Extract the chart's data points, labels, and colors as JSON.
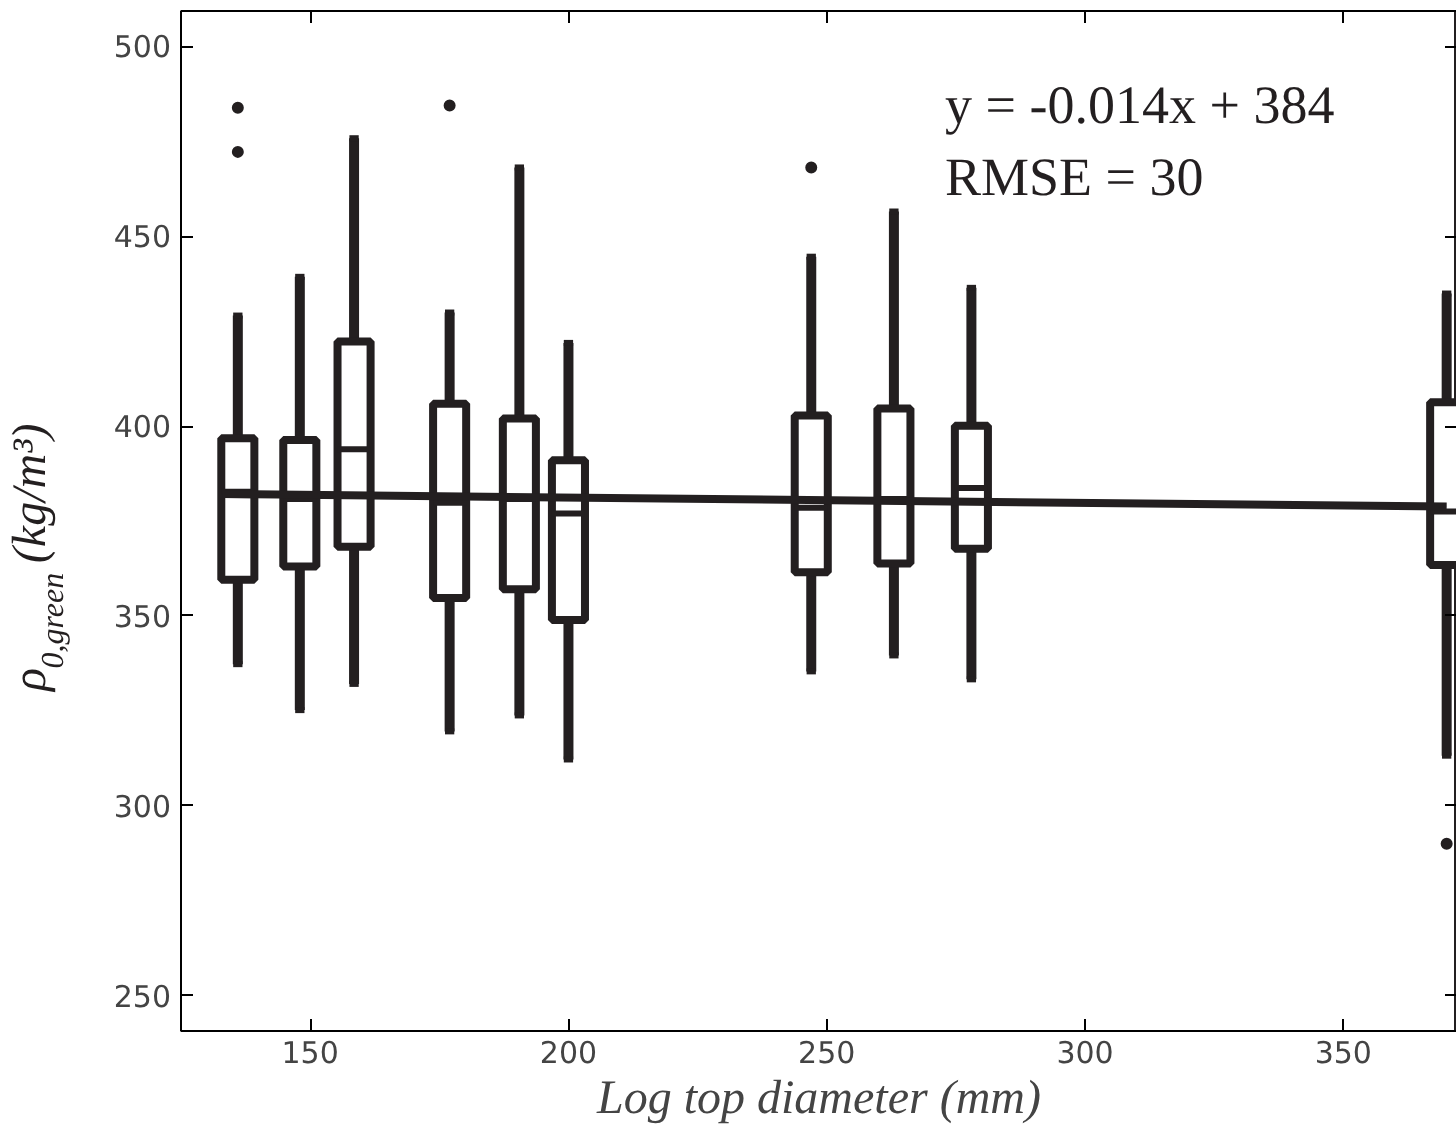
{
  "chart_data": {
    "type": "box",
    "xlabel": "Log top diameter (mm)",
    "ylabel": "ρ$_{0,green}$ (kg/m³)",
    "annotations": [
      "y = -0.014x + 384",
      "RMSE = 30"
    ],
    "xlim": [
      125,
      372
    ],
    "ylim": [
      240.7,
      509.3
    ],
    "xticks": [
      150,
      200,
      250,
      300,
      350
    ],
    "yticks": [
      250,
      300,
      350,
      400,
      450,
      500
    ],
    "grid": false,
    "series": [
      {
        "color": "#231f20",
        "x": [
          136,
          148,
          158.5,
          177,
          190.5,
          200,
          247,
          263,
          278,
          370
        ],
        "boxes": [
          {
            "low": 337.3,
            "q1": 359.5,
            "median": 382.7,
            "q3": 396.8,
            "high": 429.1,
            "outliers": [
              483.8,
              472.2
            ]
          },
          {
            "low": 325.2,
            "q1": 363.0,
            "median": 380.8,
            "q3": 396.3,
            "high": 439.3
          },
          {
            "low": 332.1,
            "q1": 368.2,
            "median": 393.9,
            "q3": 422.3,
            "high": 475.8
          },
          {
            "low": 319.6,
            "q1": 354.7,
            "median": 379.8,
            "q3": 405.9,
            "high": 429.9,
            "outliers": [
              484.4
            ]
          },
          {
            "low": 323.8,
            "q1": 357.0,
            "median": 380.8,
            "q3": 402.0,
            "high": 468.1
          },
          {
            "low": 312.2,
            "q1": 348.9,
            "median": 377.0,
            "q3": 391.0,
            "high": 421.9
          },
          {
            "low": 335.4,
            "q1": 361.5,
            "median": 378.5,
            "q3": 402.8,
            "high": 444.6,
            "outliers": [
              468.1
            ]
          },
          {
            "low": 339.6,
            "q1": 363.8,
            "median": 380.8,
            "q3": 404.6,
            "high": 456.5
          },
          {
            "low": 333.3,
            "q1": 367.7,
            "median": 383.7,
            "q3": 400.1,
            "high": 436.4
          },
          {
            "low": 313.2,
            "q1": 363.4,
            "median": 377.5,
            "q3": 406.3,
            "high": 434.9,
            "outliers": [
              290.0
            ]
          }
        ]
      },
      {
        "type": "line",
        "color": "#231f20",
        "x": [
          133,
          370
        ],
        "values": [
          382.1,
          378.8
        ]
      }
    ]
  }
}
